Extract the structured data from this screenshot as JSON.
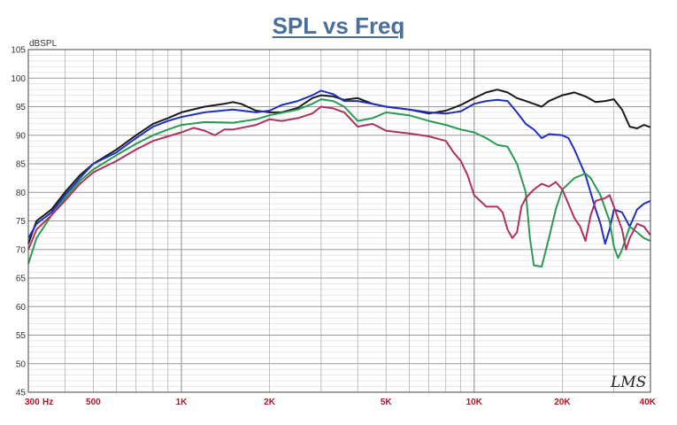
{
  "chart_data": {
    "type": "line",
    "title": "SPL vs Freq",
    "ylabel": "dBSPL",
    "x_unit": "Hz",
    "watermark": "LMS",
    "xscale": "log",
    "xlim": [
      300,
      40000
    ],
    "ylim": [
      45,
      105
    ],
    "grid": true,
    "y_ticks": [
      45,
      50,
      55,
      60,
      65,
      70,
      75,
      80,
      85,
      90,
      95,
      100,
      105
    ],
    "x_ticks": [
      {
        "value": 300,
        "label": "300"
      },
      {
        "value": 500,
        "label": "500"
      },
      {
        "value": 1000,
        "label": "1K"
      },
      {
        "value": 2000,
        "label": "2K"
      },
      {
        "value": 5000,
        "label": "5K"
      },
      {
        "value": 10000,
        "label": "10K"
      },
      {
        "value": 20000,
        "label": "20K"
      },
      {
        "value": 40000,
        "label": "40K"
      }
    ],
    "series": [
      {
        "color": "#1a1a1a",
        "points": [
          [
            300,
            71
          ],
          [
            320,
            75
          ],
          [
            360,
            77
          ],
          [
            400,
            80
          ],
          [
            450,
            83
          ],
          [
            500,
            85
          ],
          [
            600,
            87.5
          ],
          [
            700,
            90
          ],
          [
            800,
            92
          ],
          [
            900,
            93
          ],
          [
            1000,
            94
          ],
          [
            1200,
            95
          ],
          [
            1400,
            95.5
          ],
          [
            1500,
            95.8
          ],
          [
            1600,
            95.5
          ],
          [
            1800,
            94.3
          ],
          [
            2000,
            94
          ],
          [
            2200,
            94
          ],
          [
            2500,
            94.8
          ],
          [
            2800,
            96.5
          ],
          [
            3000,
            97
          ],
          [
            3300,
            96.8
          ],
          [
            3600,
            96.2
          ],
          [
            4000,
            96.5
          ],
          [
            4500,
            95.5
          ],
          [
            5000,
            95
          ],
          [
            6000,
            94.5
          ],
          [
            7000,
            93.8
          ],
          [
            8000,
            94.3
          ],
          [
            9000,
            95.3
          ],
          [
            10000,
            96.5
          ],
          [
            11000,
            97.5
          ],
          [
            12000,
            98
          ],
          [
            13000,
            97.5
          ],
          [
            14000,
            96.5
          ],
          [
            15000,
            96
          ],
          [
            16000,
            95.5
          ],
          [
            17000,
            95
          ],
          [
            18000,
            96
          ],
          [
            20000,
            97
          ],
          [
            22000,
            97.5
          ],
          [
            24000,
            96.8
          ],
          [
            26000,
            95.8
          ],
          [
            28000,
            96
          ],
          [
            30000,
            96.3
          ],
          [
            32000,
            94.5
          ],
          [
            34000,
            91.5
          ],
          [
            36000,
            91.2
          ],
          [
            38000,
            91.8
          ],
          [
            40000,
            91.4
          ]
        ]
      },
      {
        "color": "#1f2fbf",
        "points": [
          [
            300,
            72
          ],
          [
            320,
            74.5
          ],
          [
            360,
            76.5
          ],
          [
            400,
            79.5
          ],
          [
            450,
            82.5
          ],
          [
            500,
            85
          ],
          [
            600,
            87
          ],
          [
            700,
            89.5
          ],
          [
            800,
            91.5
          ],
          [
            900,
            92.5
          ],
          [
            1000,
            93.2
          ],
          [
            1200,
            94
          ],
          [
            1500,
            94.5
          ],
          [
            1800,
            94
          ],
          [
            2000,
            94.3
          ],
          [
            2200,
            95.3
          ],
          [
            2500,
            96
          ],
          [
            2800,
            97
          ],
          [
            3000,
            97.8
          ],
          [
            3300,
            97.2
          ],
          [
            3600,
            96
          ],
          [
            4000,
            96
          ],
          [
            4500,
            95.5
          ],
          [
            5000,
            95
          ],
          [
            6000,
            94.5
          ],
          [
            7000,
            94
          ],
          [
            8000,
            93.8
          ],
          [
            9000,
            94.2
          ],
          [
            10000,
            95.5
          ],
          [
            11000,
            96
          ],
          [
            12000,
            96.2
          ],
          [
            13000,
            96
          ],
          [
            14000,
            94
          ],
          [
            15000,
            92
          ],
          [
            16000,
            91
          ],
          [
            17000,
            89.5
          ],
          [
            18000,
            90.2
          ],
          [
            20000,
            90
          ],
          [
            21000,
            89.5
          ],
          [
            22000,
            87.5
          ],
          [
            24000,
            83
          ],
          [
            26000,
            77
          ],
          [
            27000,
            74.5
          ],
          [
            28000,
            71
          ],
          [
            29000,
            73.5
          ],
          [
            30000,
            77
          ],
          [
            32000,
            76.5
          ],
          [
            34000,
            74
          ],
          [
            36000,
            77
          ],
          [
            38000,
            78
          ],
          [
            40000,
            78.5
          ]
        ]
      },
      {
        "color": "#2a9a52",
        "points": [
          [
            300,
            67.5
          ],
          [
            320,
            72
          ],
          [
            360,
            76
          ],
          [
            400,
            79
          ],
          [
            450,
            82
          ],
          [
            500,
            84
          ],
          [
            600,
            86.5
          ],
          [
            700,
            88.5
          ],
          [
            800,
            90
          ],
          [
            900,
            91
          ],
          [
            1000,
            91.8
          ],
          [
            1200,
            92.3
          ],
          [
            1500,
            92.2
          ],
          [
            1800,
            92.8
          ],
          [
            2000,
            93.5
          ],
          [
            2500,
            94.5
          ],
          [
            2800,
            95.5
          ],
          [
            3000,
            96.3
          ],
          [
            3300,
            96
          ],
          [
            3600,
            95
          ],
          [
            4000,
            92.5
          ],
          [
            4500,
            93
          ],
          [
            5000,
            94
          ],
          [
            6000,
            93.5
          ],
          [
            7000,
            92.5
          ],
          [
            8000,
            91.8
          ],
          [
            9000,
            91
          ],
          [
            10000,
            90.5
          ],
          [
            11000,
            89.5
          ],
          [
            12000,
            88.3
          ],
          [
            13000,
            88
          ],
          [
            14000,
            85
          ],
          [
            15000,
            80
          ],
          [
            15500,
            72
          ],
          [
            16000,
            67.2
          ],
          [
            17000,
            67
          ],
          [
            18000,
            72
          ],
          [
            19000,
            77
          ],
          [
            20000,
            80.5
          ],
          [
            22000,
            82.5
          ],
          [
            24000,
            83.3
          ],
          [
            25000,
            82.5
          ],
          [
            27000,
            79.5
          ],
          [
            29000,
            75
          ],
          [
            30000,
            70.5
          ],
          [
            31000,
            68.5
          ],
          [
            32000,
            70
          ],
          [
            34000,
            74
          ],
          [
            36000,
            73
          ],
          [
            38000,
            72
          ],
          [
            40000,
            71.5
          ]
        ]
      },
      {
        "color": "#b0305e",
        "points": [
          [
            300,
            70
          ],
          [
            320,
            73.5
          ],
          [
            360,
            76
          ],
          [
            400,
            78.5
          ],
          [
            450,
            81.5
          ],
          [
            500,
            83.5
          ],
          [
            600,
            85.5
          ],
          [
            700,
            87.5
          ],
          [
            800,
            89
          ],
          [
            900,
            89.8
          ],
          [
            1000,
            90.5
          ],
          [
            1100,
            91.3
          ],
          [
            1200,
            90.8
          ],
          [
            1300,
            90
          ],
          [
            1400,
            91
          ],
          [
            1500,
            91
          ],
          [
            1800,
            91.8
          ],
          [
            2000,
            92.8
          ],
          [
            2200,
            92.5
          ],
          [
            2500,
            93
          ],
          [
            2800,
            93.8
          ],
          [
            3000,
            95
          ],
          [
            3300,
            94.7
          ],
          [
            3600,
            94
          ],
          [
            4000,
            91.5
          ],
          [
            4500,
            92
          ],
          [
            5000,
            90.8
          ],
          [
            6000,
            90.3
          ],
          [
            7000,
            89.8
          ],
          [
            8000,
            89
          ],
          [
            8500,
            87
          ],
          [
            9000,
            85.5
          ],
          [
            9500,
            83
          ],
          [
            10000,
            79.5
          ],
          [
            11000,
            77.5
          ],
          [
            12000,
            77.5
          ],
          [
            12500,
            76.5
          ],
          [
            13000,
            73.5
          ],
          [
            13500,
            72
          ],
          [
            14000,
            73
          ],
          [
            14500,
            77.5
          ],
          [
            15000,
            79
          ],
          [
            16000,
            80.5
          ],
          [
            17000,
            81.5
          ],
          [
            18000,
            81
          ],
          [
            19000,
            81.8
          ],
          [
            20000,
            80.5
          ],
          [
            22000,
            75.5
          ],
          [
            23000,
            74
          ],
          [
            24000,
            71.5
          ],
          [
            25000,
            76
          ],
          [
            26000,
            78.5
          ],
          [
            28000,
            79
          ],
          [
            29000,
            79.5
          ],
          [
            30000,
            77.5
          ],
          [
            32000,
            73.5
          ],
          [
            33000,
            70
          ],
          [
            34000,
            72
          ],
          [
            36000,
            74.5
          ],
          [
            38000,
            74
          ],
          [
            40000,
            72.5
          ]
        ]
      }
    ]
  }
}
